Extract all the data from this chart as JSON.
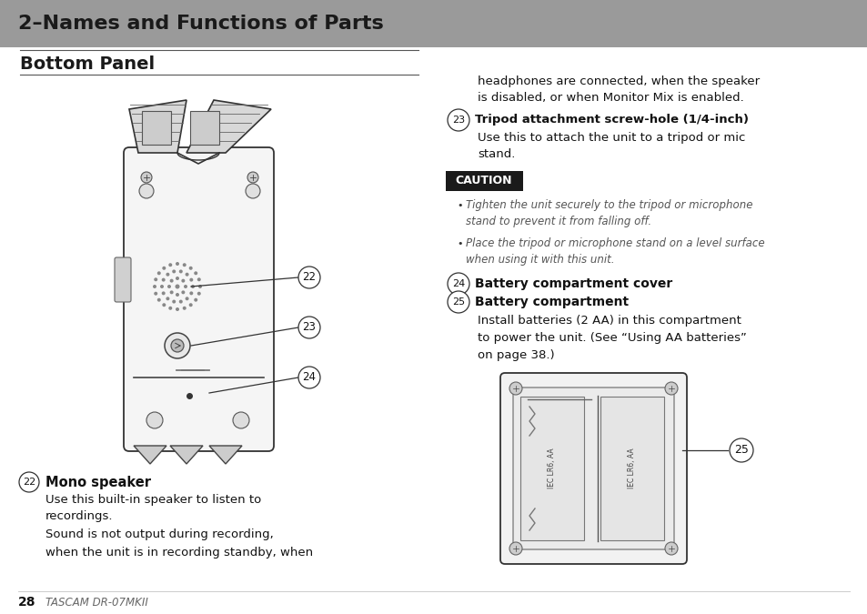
{
  "title": "2–Names and Functions of Parts",
  "title_bg": "#999999",
  "title_color": "#1a1a1a",
  "section_title": "Bottom Panel",
  "page_bg": "#ffffff",
  "page_number": "28",
  "page_number_label": "TASCAM DR-07MKII",
  "fig_w": 9.54,
  "fig_h": 6.75,
  "dpi": 100
}
